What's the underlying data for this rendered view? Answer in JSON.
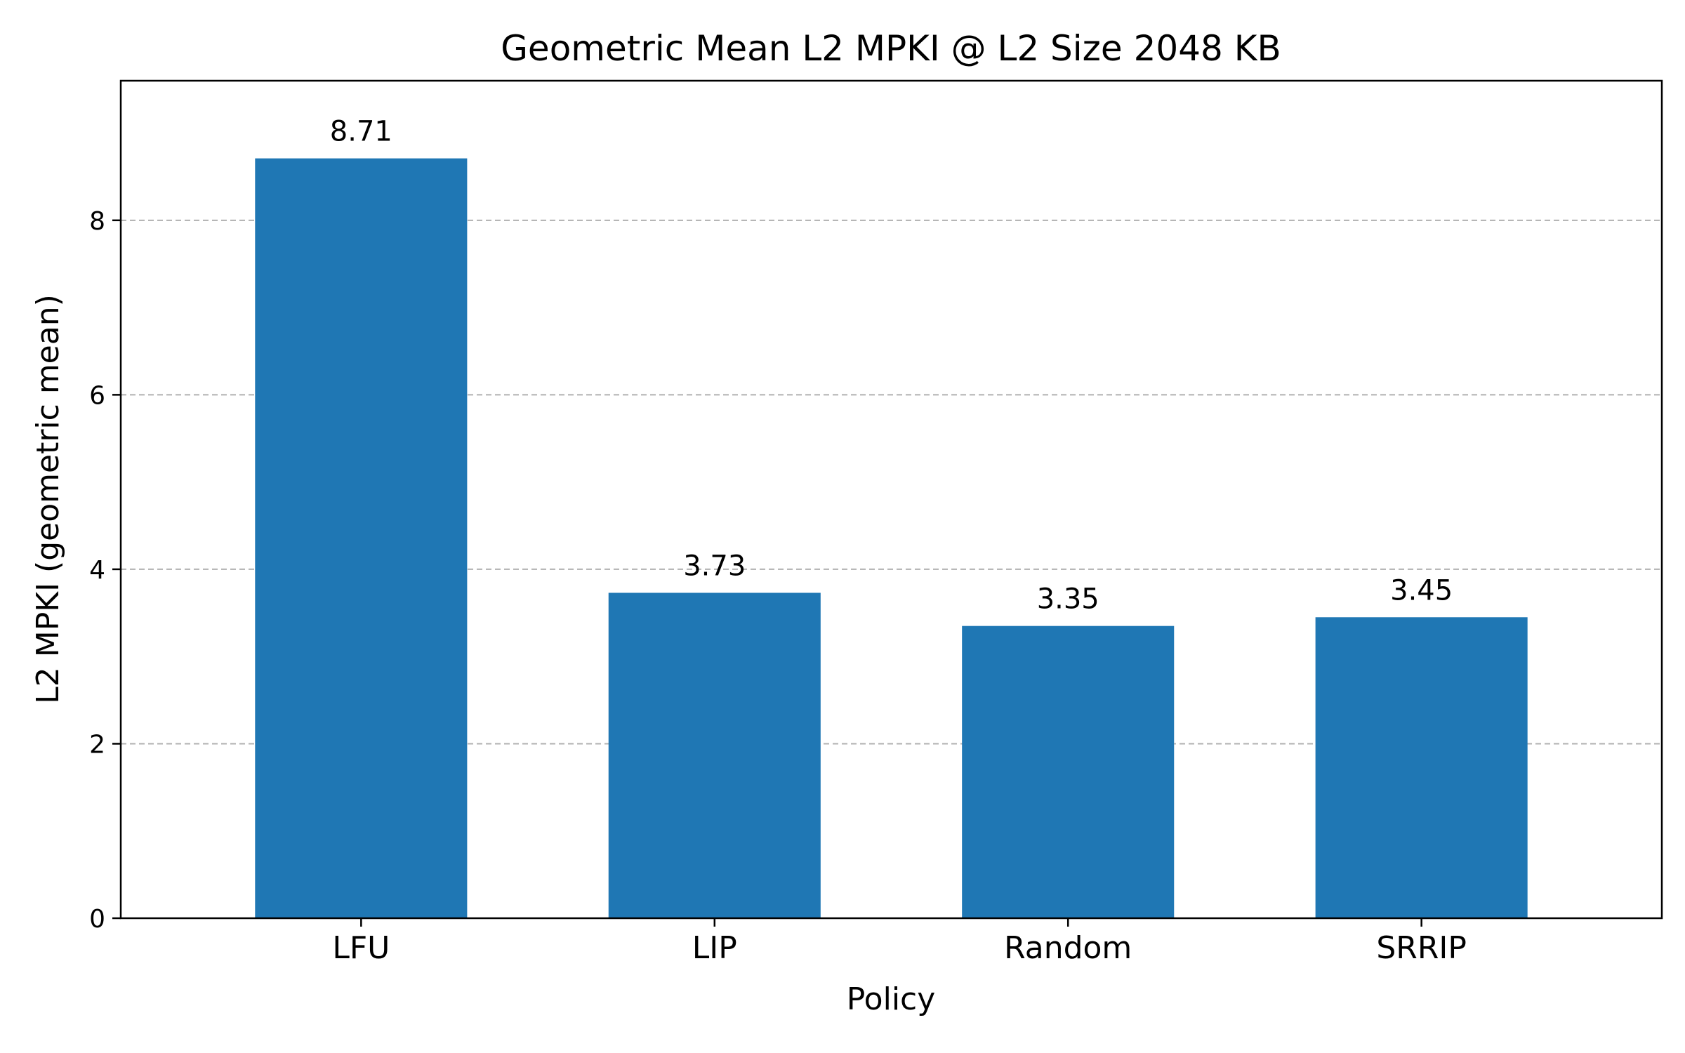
{
  "chart_data": {
    "type": "bar",
    "title": "Geometric Mean L2 MPKI @ L2 Size 2048 KB",
    "xlabel": "Policy",
    "ylabel": "L2 MPKI (geometric mean)",
    "categories": [
      "LFU",
      "LIP",
      "Random",
      "SRRIP"
    ],
    "values": [
      8.71,
      3.73,
      3.35,
      3.45
    ],
    "data_labels": [
      "8.71",
      "3.73",
      "3.35",
      "3.45"
    ],
    "ylim": [
      0,
      9.6
    ],
    "yticks": [
      0,
      2,
      4,
      6,
      8
    ],
    "ytick_labels": [
      "0",
      "2",
      "4",
      "6",
      "8"
    ],
    "grid": "y-dashed",
    "bar_color": "#1f77b4"
  }
}
